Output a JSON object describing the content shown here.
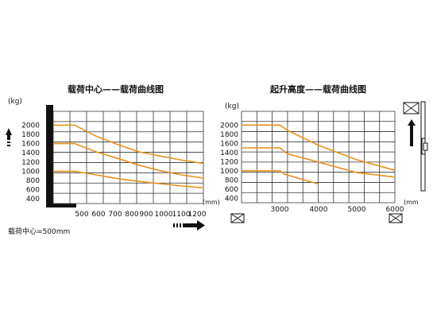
{
  "chart_data": [
    {
      "id": "left",
      "type": "line",
      "title": "载荷中心——载荷曲线图",
      "y_unit": "(kg)",
      "x_unit": "(mm)",
      "y_ticks": [
        "2000",
        "1800",
        "1600",
        "1400",
        "1200",
        "1000",
        "800",
        "600",
        "400"
      ],
      "x_ticks": [
        "500",
        "600",
        "700",
        "800",
        "900",
        "1000",
        "1100",
        "1200"
      ],
      "xlim": [
        500,
        1200
      ],
      "ylim": [
        300,
        2300
      ],
      "grid": true,
      "line_color": "#e8921e",
      "series": [
        {
          "x": [
            500,
            600,
            700,
            800,
            900,
            1000,
            1100,
            1200
          ],
          "y": [
            2000,
            2000,
            1760,
            1580,
            1420,
            1330,
            1240,
            1170
          ]
        },
        {
          "x": [
            500,
            600,
            700,
            800,
            900,
            1000,
            1100,
            1200
          ],
          "y": [
            1600,
            1600,
            1420,
            1280,
            1130,
            1010,
            920,
            850
          ]
        },
        {
          "x": [
            500,
            600,
            700,
            800,
            900,
            1000,
            1100,
            1200
          ],
          "y": [
            1000,
            1000,
            920,
            840,
            780,
            730,
            680,
            640
          ]
        }
      ],
      "note": "载荷中心=500mm"
    },
    {
      "id": "right",
      "type": "line",
      "title": "起升高度——载荷曲线图",
      "y_unit": "(kg)",
      "x_unit": "(mm",
      "y_ticks": [
        "2000",
        "1800",
        "1600",
        "1400",
        "1200",
        "1000",
        "800",
        "600",
        "400"
      ],
      "x_ticks": [
        "3000",
        "4000",
        "5000",
        "6000"
      ],
      "xlim": [
        2000,
        6000
      ],
      "ylim": [
        300,
        2300
      ],
      "grid": true,
      "line_color": "#e8921e",
      "series": [
        {
          "x": [
            2000,
            3000,
            3200,
            4000,
            5000,
            6000
          ],
          "y": [
            2000,
            2000,
            1880,
            1560,
            1240,
            1010
          ]
        },
        {
          "x": [
            2000,
            3000,
            3200,
            4000,
            5000,
            6000
          ],
          "y": [
            1500,
            1500,
            1370,
            1190,
            960,
            860
          ]
        },
        {
          "x": [
            2000,
            3000,
            3100,
            4000
          ],
          "y": [
            1000,
            1000,
            930,
            710
          ]
        }
      ]
    }
  ],
  "colors": {
    "grid": "#333333",
    "curve": "#e8921e",
    "frame": "#111111"
  },
  "icons": [
    "arrow-up-icon",
    "arrow-right-icon",
    "pallet-box-icon",
    "mast-icon"
  ]
}
